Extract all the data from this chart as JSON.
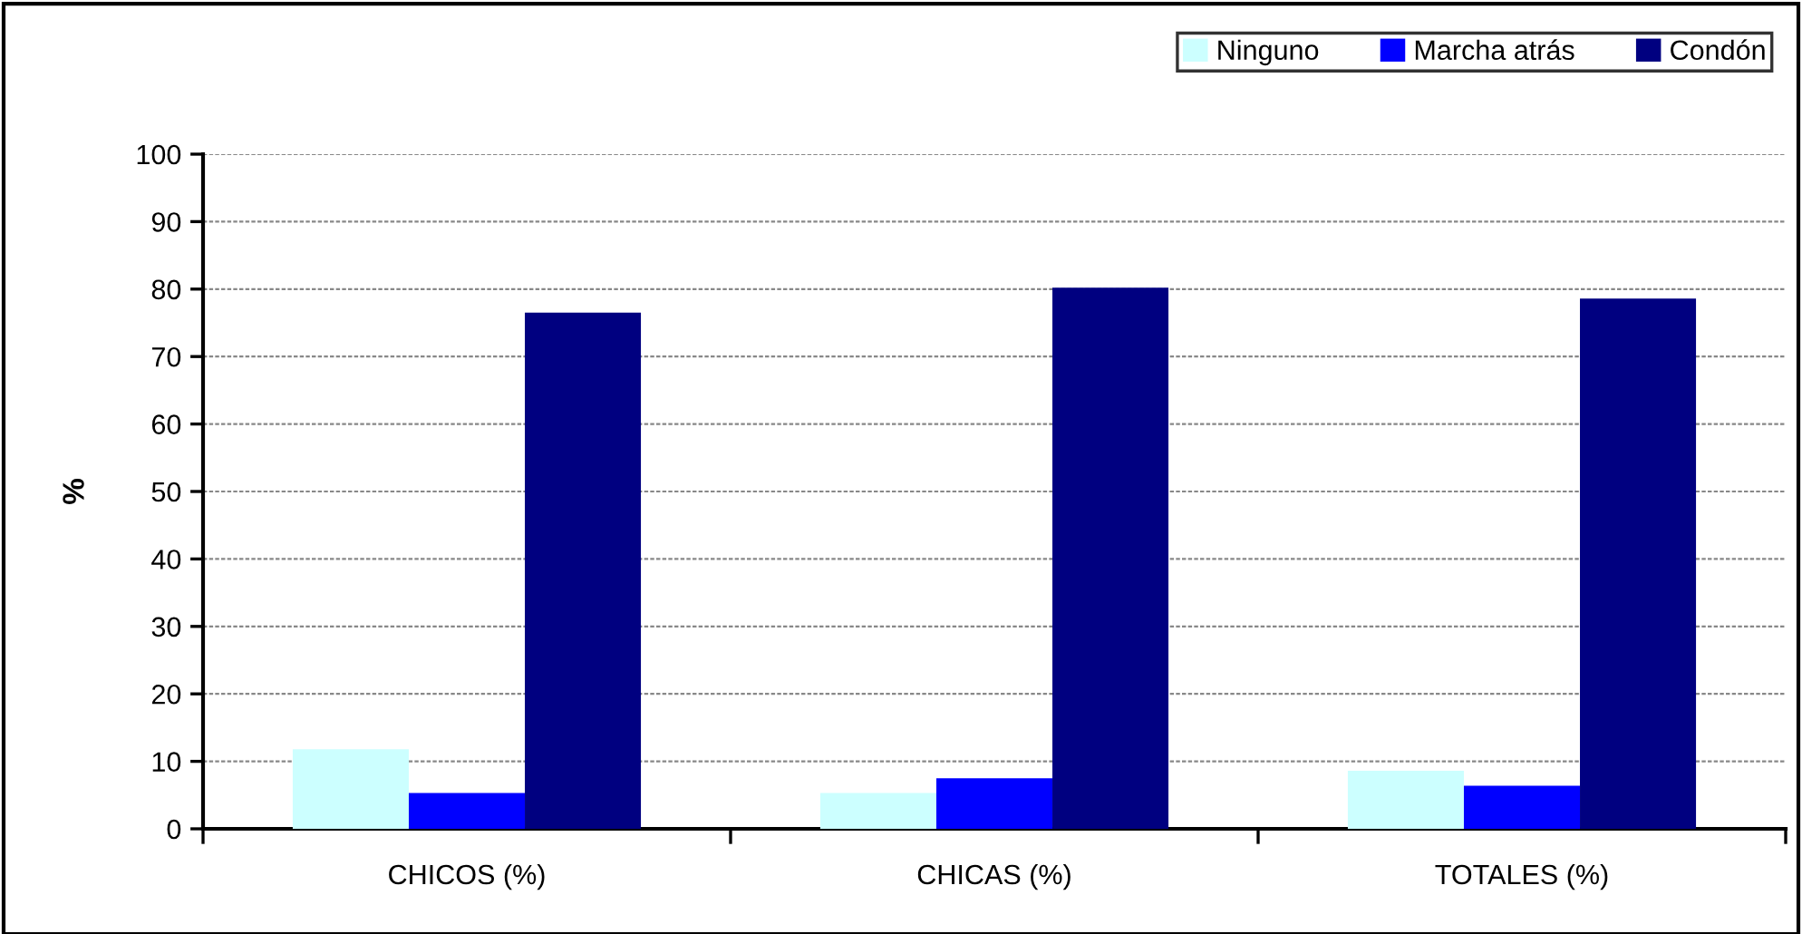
{
  "chart_data": {
    "type": "bar",
    "ylabel": "%",
    "categories": [
      "CHICOS (%)",
      "CHICAS (%)",
      "TOTALES (%)"
    ],
    "series": [
      {
        "name": "Ninguno",
        "color": "#ccffff",
        "values": [
          11.8,
          5.3,
          8.6
        ]
      },
      {
        "name": "Marcha atrás",
        "color": "#0000ff",
        "values": [
          5.3,
          7.5,
          6.4
        ]
      },
      {
        "name": "Condón",
        "color": "#000080",
        "values": [
          76.5,
          80.2,
          78.6
        ]
      }
    ],
    "ylim": [
      0,
      100
    ],
    "yticks": [
      0,
      10,
      20,
      30,
      40,
      50,
      60,
      70,
      80,
      90,
      100
    ],
    "grid": "y",
    "legend": "top right"
  }
}
